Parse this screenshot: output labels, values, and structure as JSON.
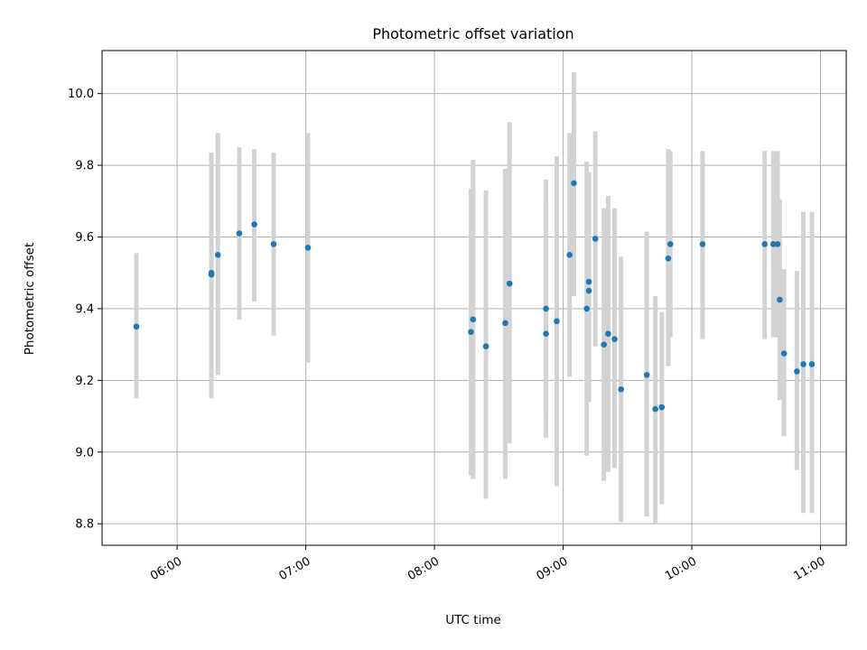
{
  "chart_data": {
    "type": "scatter",
    "title": "Photometric offset variation",
    "xlabel": "UTC time",
    "ylabel": "Photometric offset",
    "xlim": [
      "05:25",
      "11:12"
    ],
    "ylim": [
      8.74,
      10.12
    ],
    "xticks": [
      "06:00",
      "07:00",
      "08:00",
      "09:00",
      "10:00",
      "11:00"
    ],
    "yticks": [
      "8.8",
      "9.0",
      "9.2",
      "9.4",
      "9.6",
      "9.8",
      "10.0"
    ],
    "grid": true,
    "colors": {
      "point": "#1f77b4",
      "errorbar": "#d3d3d3",
      "grid": "#b0b0b0"
    },
    "points": [
      {
        "x": "05:41",
        "y": 9.35,
        "ylo": 9.15,
        "yhi": 9.555
      },
      {
        "x": "06:16",
        "y": 9.495,
        "ylo": 9.15,
        "yhi": 9.835
      },
      {
        "x": "06:16",
        "y": 9.5,
        "ylo": 9.2,
        "yhi": 9.8
      },
      {
        "x": "06:19",
        "y": 9.55,
        "ylo": 9.215,
        "yhi": 9.89
      },
      {
        "x": "06:29",
        "y": 9.61,
        "ylo": 9.37,
        "yhi": 9.85
      },
      {
        "x": "06:36",
        "y": 9.635,
        "ylo": 9.42,
        "yhi": 9.845
      },
      {
        "x": "06:45",
        "y": 9.58,
        "ylo": 9.325,
        "yhi": 9.835
      },
      {
        "x": "07:01",
        "y": 9.57,
        "ylo": 9.25,
        "yhi": 9.89
      },
      {
        "x": "08:17",
        "y": 9.335,
        "ylo": 8.935,
        "yhi": 9.735
      },
      {
        "x": "08:18",
        "y": 9.37,
        "ylo": 8.925,
        "yhi": 9.815
      },
      {
        "x": "08:24",
        "y": 9.295,
        "ylo": 8.87,
        "yhi": 9.73
      },
      {
        "x": "08:33",
        "y": 9.36,
        "ylo": 8.925,
        "yhi": 9.79
      },
      {
        "x": "08:35",
        "y": 9.47,
        "ylo": 9.025,
        "yhi": 9.92
      },
      {
        "x": "08:52",
        "y": 9.33,
        "ylo": 9.04,
        "yhi": 9.76
      },
      {
        "x": "08:52",
        "y": 9.4,
        "ylo": 9.1,
        "yhi": 9.7
      },
      {
        "x": "08:57",
        "y": 9.365,
        "ylo": 8.905,
        "yhi": 9.825
      },
      {
        "x": "09:03",
        "y": 9.55,
        "ylo": 9.21,
        "yhi": 9.89
      },
      {
        "x": "09:05",
        "y": 9.75,
        "ylo": 9.435,
        "yhi": 10.06
      },
      {
        "x": "09:11",
        "y": 9.4,
        "ylo": 8.99,
        "yhi": 9.81
      },
      {
        "x": "09:12",
        "y": 9.475,
        "ylo": 9.18,
        "yhi": 9.77
      },
      {
        "x": "09:12",
        "y": 9.45,
        "ylo": 9.14,
        "yhi": 9.78
      },
      {
        "x": "09:15",
        "y": 9.595,
        "ylo": 9.295,
        "yhi": 9.895
      },
      {
        "x": "09:19",
        "y": 9.3,
        "ylo": 8.92,
        "yhi": 9.68
      },
      {
        "x": "09:21",
        "y": 9.33,
        "ylo": 8.945,
        "yhi": 9.715
      },
      {
        "x": "09:24",
        "y": 9.315,
        "ylo": 8.955,
        "yhi": 9.68
      },
      {
        "x": "09:27",
        "y": 9.175,
        "ylo": 8.805,
        "yhi": 9.545
      },
      {
        "x": "09:39",
        "y": 9.215,
        "ylo": 8.82,
        "yhi": 9.615
      },
      {
        "x": "09:43",
        "y": 9.12,
        "ylo": 8.8,
        "yhi": 9.435
      },
      {
        "x": "09:46",
        "y": 9.125,
        "ylo": 8.855,
        "yhi": 9.39
      },
      {
        "x": "09:49",
        "y": 9.54,
        "ylo": 9.24,
        "yhi": 9.845
      },
      {
        "x": "09:50",
        "y": 9.58,
        "ylo": 9.32,
        "yhi": 9.84
      },
      {
        "x": "10:05",
        "y": 9.58,
        "ylo": 9.315,
        "yhi": 9.84
      },
      {
        "x": "10:34",
        "y": 9.58,
        "ylo": 9.315,
        "yhi": 9.84
      },
      {
        "x": "10:38",
        "y": 9.58,
        "ylo": 9.32,
        "yhi": 9.84
      },
      {
        "x": "10:40",
        "y": 9.58,
        "ylo": 9.32,
        "yhi": 9.84
      },
      {
        "x": "10:41",
        "y": 9.425,
        "ylo": 9.145,
        "yhi": 9.705
      },
      {
        "x": "10:43",
        "y": 9.275,
        "ylo": 9.045,
        "yhi": 9.51
      },
      {
        "x": "10:49",
        "y": 9.225,
        "ylo": 8.95,
        "yhi": 9.505
      },
      {
        "x": "10:52",
        "y": 9.245,
        "ylo": 8.83,
        "yhi": 9.67
      },
      {
        "x": "10:56",
        "y": 9.245,
        "ylo": 8.83,
        "yhi": 9.67
      }
    ]
  }
}
